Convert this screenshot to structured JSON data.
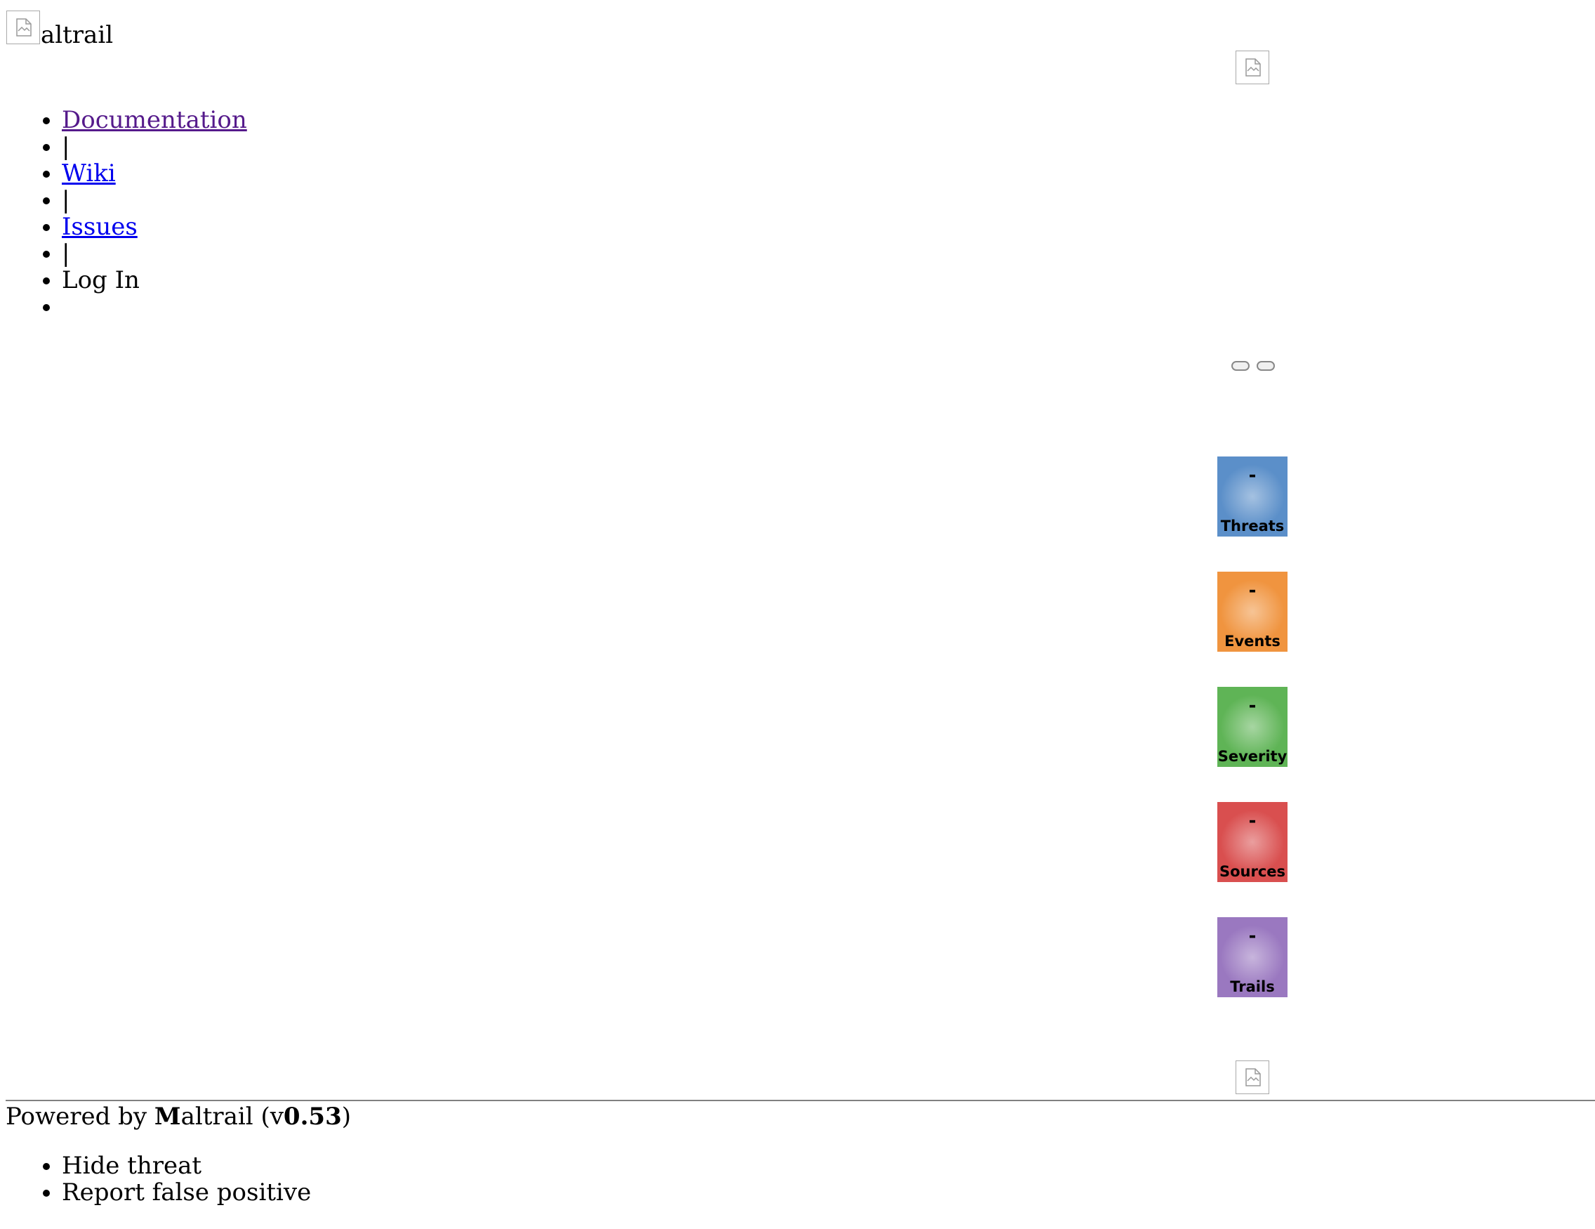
{
  "header": {
    "logo_icon": "broken-image-icon",
    "title_text": "altrail"
  },
  "nav": {
    "items": [
      {
        "label": "Documentation",
        "type": "link",
        "visited": true
      },
      {
        "label": "|",
        "type": "separator"
      },
      {
        "label": "Wiki",
        "type": "link"
      },
      {
        "label": "|",
        "type": "separator"
      },
      {
        "label": "Issues",
        "type": "link"
      },
      {
        "label": "|",
        "type": "separator"
      },
      {
        "label": "Log In",
        "type": "text"
      },
      {
        "label": "",
        "type": "empty"
      }
    ]
  },
  "logos": {
    "top_icon": "broken-image-icon",
    "bottom_icon": "broken-image-icon"
  },
  "counters": [
    {
      "label": "Threats",
      "value": "-",
      "color": "#5b8fc9"
    },
    {
      "label": "Events",
      "value": "-",
      "color": "#f0943f"
    },
    {
      "label": "Severity",
      "value": "-",
      "color": "#5fb456"
    },
    {
      "label": "Sources",
      "value": "-",
      "color": "#d94f4f"
    },
    {
      "label": "Trails",
      "value": "-",
      "color": "#9a78c0"
    }
  ],
  "footer": {
    "prefix": "Powered by ",
    "brand_initial": "M",
    "brand_rest": "altrail (v",
    "version": "0.53",
    "suffix": ")"
  },
  "context_menu": {
    "items": [
      "Hide threat",
      "Report false positive"
    ]
  }
}
